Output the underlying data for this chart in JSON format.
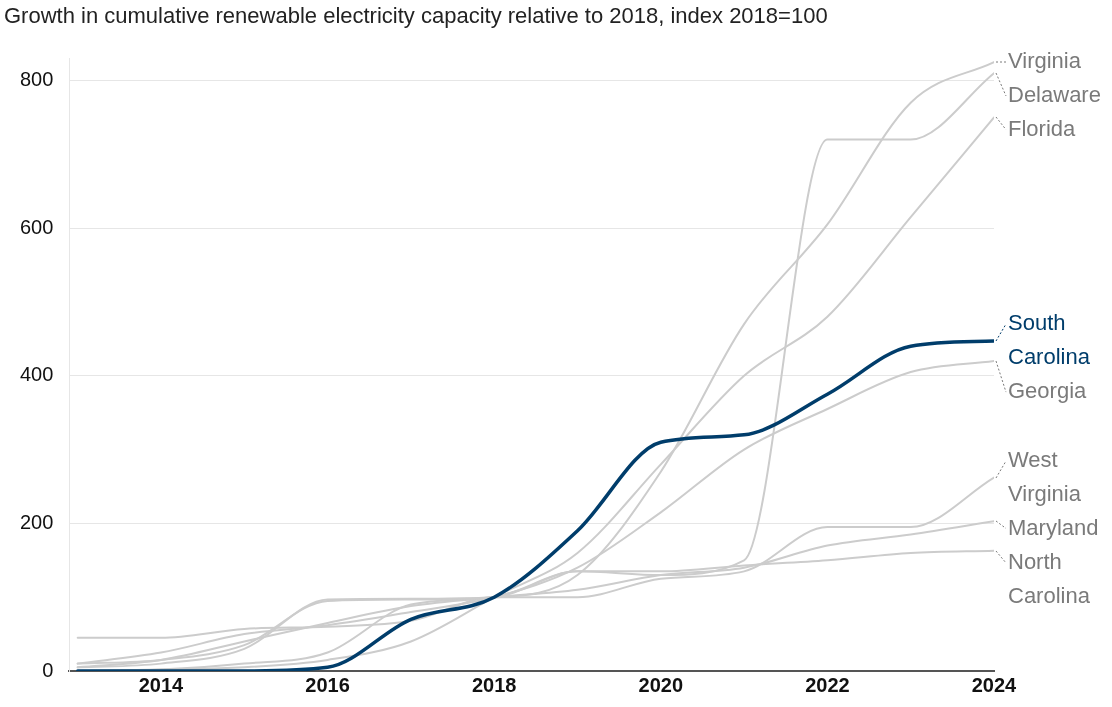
{
  "chart_data": {
    "type": "line",
    "title": "Growth in cumulative renewable electricity capacity relative to 2018, index 2018=100",
    "x": [
      2013,
      2014,
      2015,
      2016,
      2017,
      2018,
      2019,
      2020,
      2021,
      2022,
      2023,
      2024
    ],
    "xlim": [
      2012.9,
      2024
    ],
    "xticks": [
      2014,
      2016,
      2018,
      2020,
      2022,
      2024
    ],
    "ylim": [
      0,
      830
    ],
    "yticks": [
      0,
      200,
      400,
      600,
      800
    ],
    "grid": "y",
    "legend": "right",
    "marker": "none",
    "line_style": "solid",
    "series": [
      {
        "name": "South Carolina",
        "color": "#003d6b",
        "values": [
          0,
          0,
          0,
          5,
          70,
          100,
          190,
          310,
          320,
          375,
          440,
          447
        ]
      },
      {
        "name": "Virginia",
        "color": "#cccccc",
        "values": [
          5,
          10,
          30,
          97,
          98,
          100,
          130,
          270,
          470,
          605,
          770,
          825
        ]
      },
      {
        "name": "Delaware",
        "color": "#cccccc",
        "values": [
          10,
          15,
          35,
          95,
          97,
          100,
          135,
          130,
          150,
          720,
          720,
          810
        ]
      },
      {
        "name": "Florida",
        "color": "#cccccc",
        "values": [
          0,
          2,
          5,
          15,
          40,
          100,
          160,
          280,
          400,
          480,
          615,
          750
        ]
      },
      {
        "name": "Georgia",
        "color": "#cccccc",
        "values": [
          10,
          25,
          50,
          62,
          80,
          100,
          140,
          215,
          300,
          355,
          405,
          420
        ]
      },
      {
        "name": "West Virginia",
        "color": "#cccccc",
        "values": [
          45,
          45,
          57,
          60,
          68,
          100,
          100,
          125,
          135,
          195,
          195,
          262
        ]
      },
      {
        "name": "Maryland",
        "color": "#cccccc",
        "values": [
          5,
          15,
          40,
          65,
          88,
          100,
          110,
          130,
          140,
          170,
          185,
          203
        ]
      },
      {
        "name": "North Carolina",
        "color": "#cccccc",
        "values": [
          0,
          2,
          10,
          25,
          90,
          100,
          135,
          135,
          143,
          150,
          160,
          163
        ]
      }
    ]
  }
}
